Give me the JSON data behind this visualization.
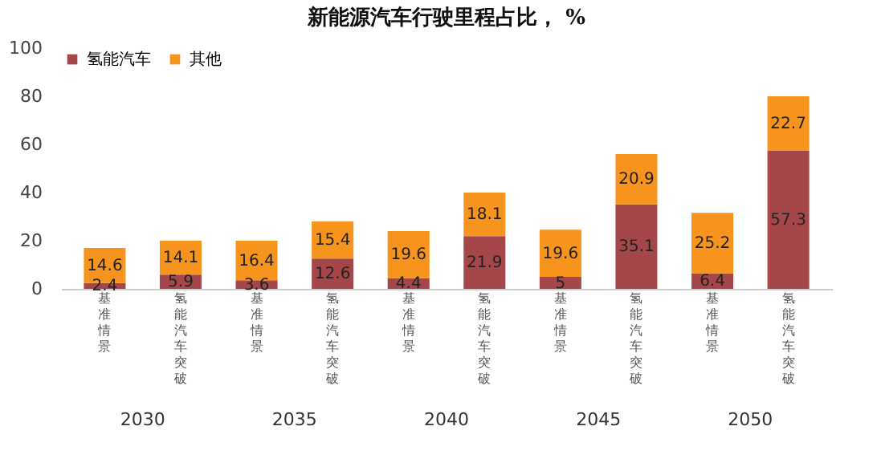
{
  "chart_data": {
    "type": "bar",
    "title": "新能源汽车行驶里程占比， %",
    "stacked": true,
    "categories": [
      "基准情景",
      "氢能汽车突破",
      "基准情景",
      "氢能汽车突破",
      "基准情景",
      "氢能汽车突破",
      "基准情景",
      "氢能汽车突破",
      "基准情景",
      "氢能汽车突破"
    ],
    "series": [
      {
        "name": "氢能汽车",
        "color": "#a5474a",
        "values": [
          2.4,
          5.9,
          3.6,
          12.6,
          4.4,
          21.9,
          5,
          35.1,
          6.4,
          57.3
        ]
      },
      {
        "name": "其他",
        "color": "#f7941d",
        "values": [
          14.6,
          14.1,
          16.4,
          15.4,
          19.6,
          18.1,
          19.6,
          20.9,
          25.2,
          22.7
        ]
      }
    ],
    "ylim": [
      0,
      100
    ],
    "yticks": [
      0,
      20,
      40,
      60,
      80,
      100
    ],
    "grid": false,
    "legend": "top left",
    "data_labels": true,
    "annotations": [
      "2030",
      "2035",
      "2040",
      "2045",
      "2050"
    ]
  }
}
